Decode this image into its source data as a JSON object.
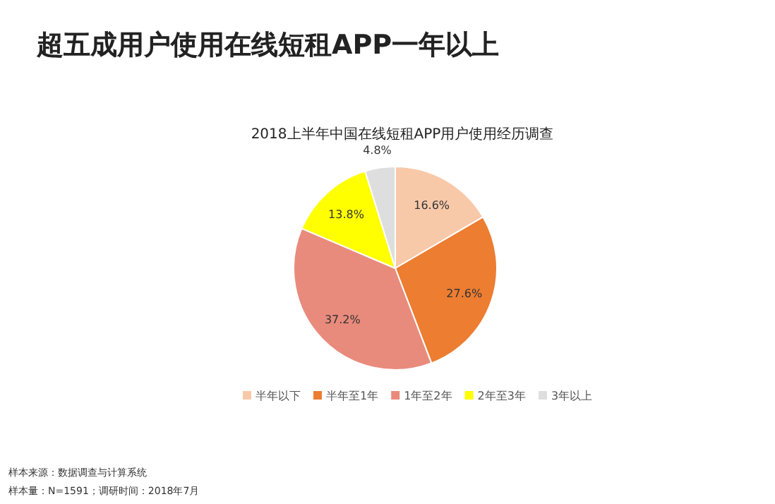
{
  "chart_data": {
    "type": "pie",
    "title": "超五成用户使用在线短租APP一年以上",
    "subtitle": "2018上半年中国在线短租APP用户使用经历调查",
    "categories": [
      "半年以下",
      "半年至1年",
      "1年至2年",
      "2年至3年",
      "3年以上"
    ],
    "values": [
      16.6,
      27.6,
      37.2,
      13.8,
      4.8
    ],
    "colors": [
      "#f8c9a9",
      "#ed7d31",
      "#e98b7c",
      "#ffff00",
      "#dedede"
    ],
    "value_labels": [
      "16.6%",
      "27.6%",
      "37.2%",
      "13.8%",
      "4.8%"
    ],
    "legend": "bottom",
    "annotations": [
      "样本来源：数据调查与计算系统",
      "样本量：N=1591；调研时间：2018年7月"
    ]
  }
}
